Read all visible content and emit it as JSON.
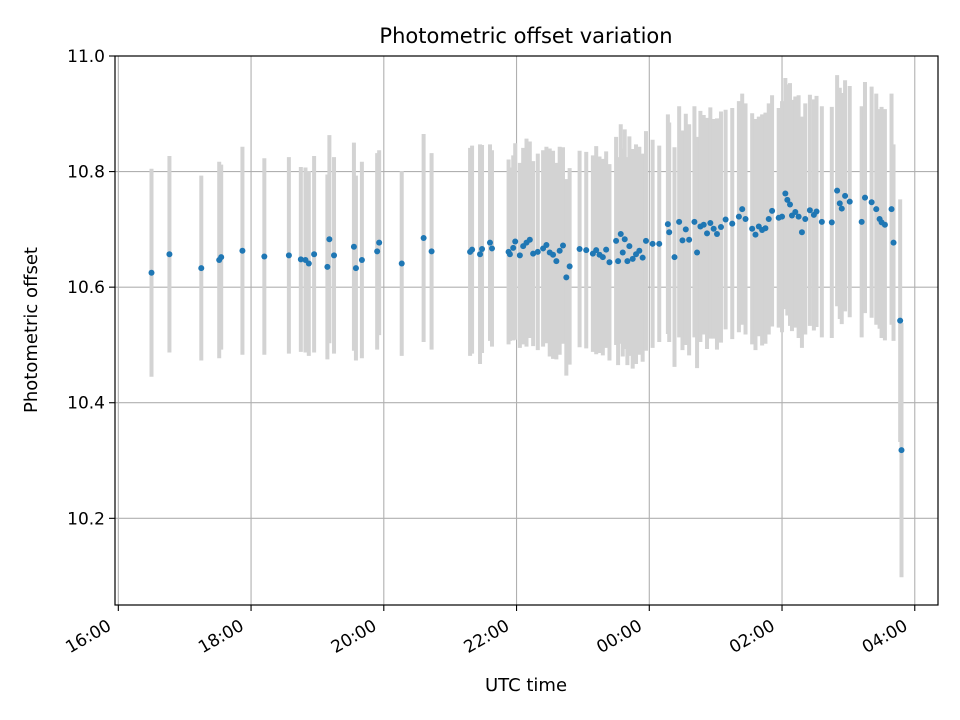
{
  "chart_data": {
    "type": "scatter",
    "title": "Photometric offset variation",
    "xlabel": "UTC time",
    "ylabel": "Photometric offset",
    "x_tick_labels": [
      "16:00",
      "18:00",
      "20:00",
      "22:00",
      "00:00",
      "02:00",
      "04:00"
    ],
    "x_tick_hours": [
      16,
      18,
      20,
      22,
      24,
      26,
      28
    ],
    "xlim_hours": [
      15.95,
      28.35
    ],
    "y_tick_labels": [
      "10.2",
      "10.4",
      "10.6",
      "10.8",
      "11.0"
    ],
    "y_ticks": [
      10.2,
      10.4,
      10.6,
      10.8,
      11.0
    ],
    "ylim": [
      10.05,
      11.0
    ],
    "grid": true,
    "marker_color": "#1f77b4",
    "errorbar_color": "#d3d3d3",
    "points": [
      [
        16.5,
        10.625,
        0.18
      ],
      [
        16.77,
        10.657,
        0.17
      ],
      [
        17.25,
        10.633,
        0.16
      ],
      [
        17.52,
        10.647,
        0.17
      ],
      [
        17.55,
        10.652,
        0.16
      ],
      [
        17.87,
        10.663,
        0.18
      ],
      [
        18.2,
        10.653,
        0.17
      ],
      [
        18.57,
        10.655,
        0.17
      ],
      [
        18.75,
        10.648,
        0.16
      ],
      [
        18.82,
        10.647,
        0.16
      ],
      [
        18.87,
        10.641,
        0.16
      ],
      [
        18.95,
        10.657,
        0.17
      ],
      [
        19.15,
        10.635,
        0.16
      ],
      [
        19.18,
        10.683,
        0.18
      ],
      [
        19.25,
        10.655,
        0.17
      ],
      [
        19.55,
        10.67,
        0.18
      ],
      [
        19.58,
        10.633,
        0.16
      ],
      [
        19.67,
        10.647,
        0.17
      ],
      [
        19.9,
        10.662,
        0.17
      ],
      [
        19.93,
        10.677,
        0.16
      ],
      [
        20.27,
        10.641,
        0.16
      ],
      [
        20.6,
        10.685,
        0.18
      ],
      [
        20.72,
        10.662,
        0.17
      ],
      [
        21.3,
        10.661,
        0.18
      ],
      [
        21.33,
        10.665,
        0.18
      ],
      [
        21.45,
        10.657,
        0.19
      ],
      [
        21.48,
        10.666,
        0.18
      ],
      [
        21.6,
        10.677,
        0.17
      ],
      [
        21.63,
        10.667,
        0.17
      ],
      [
        21.88,
        10.661,
        0.16
      ],
      [
        21.9,
        10.657,
        0.15
      ],
      [
        21.95,
        10.668,
        0.16
      ],
      [
        21.98,
        10.679,
        0.17
      ],
      [
        22.05,
        10.655,
        0.16
      ],
      [
        22.1,
        10.671,
        0.17
      ],
      [
        22.15,
        10.677,
        0.18
      ],
      [
        22.2,
        10.682,
        0.17
      ],
      [
        22.25,
        10.658,
        0.16
      ],
      [
        22.32,
        10.661,
        0.17
      ],
      [
        22.4,
        10.667,
        0.17
      ],
      [
        22.45,
        10.673,
        0.17
      ],
      [
        22.5,
        10.66,
        0.18
      ],
      [
        22.55,
        10.656,
        0.18
      ],
      [
        22.6,
        10.645,
        0.17
      ],
      [
        22.65,
        10.663,
        0.18
      ],
      [
        22.7,
        10.672,
        0.17
      ],
      [
        22.75,
        10.617,
        0.17
      ],
      [
        22.8,
        10.636,
        0.17
      ],
      [
        22.95,
        10.666,
        0.17
      ],
      [
        23.05,
        10.664,
        0.17
      ],
      [
        23.15,
        10.658,
        0.17
      ],
      [
        23.2,
        10.664,
        0.18
      ],
      [
        23.25,
        10.656,
        0.17
      ],
      [
        23.3,
        10.652,
        0.17
      ],
      [
        23.35,
        10.665,
        0.17
      ],
      [
        23.4,
        10.643,
        0.17
      ],
      [
        23.5,
        10.68,
        0.18
      ],
      [
        23.53,
        10.645,
        0.18
      ],
      [
        23.57,
        10.692,
        0.19
      ],
      [
        23.6,
        10.66,
        0.18
      ],
      [
        23.63,
        10.683,
        0.19
      ],
      [
        23.67,
        10.645,
        0.18
      ],
      [
        23.7,
        10.671,
        0.19
      ],
      [
        23.75,
        10.649,
        0.19
      ],
      [
        23.8,
        10.657,
        0.19
      ],
      [
        23.85,
        10.663,
        0.18
      ],
      [
        23.9,
        10.651,
        0.18
      ],
      [
        23.95,
        10.68,
        0.19
      ],
      [
        24.05,
        10.675,
        0.18
      ],
      [
        24.15,
        10.675,
        0.17
      ],
      [
        24.28,
        10.709,
        0.19
      ],
      [
        24.3,
        10.695,
        0.19
      ],
      [
        24.38,
        10.652,
        0.19
      ],
      [
        24.45,
        10.713,
        0.2
      ],
      [
        24.5,
        10.681,
        0.19
      ],
      [
        24.55,
        10.7,
        0.2
      ],
      [
        24.6,
        10.682,
        0.2
      ],
      [
        24.68,
        10.713,
        0.2
      ],
      [
        24.72,
        10.66,
        0.2
      ],
      [
        24.77,
        10.705,
        0.2
      ],
      [
        24.82,
        10.708,
        0.19
      ],
      [
        24.87,
        10.693,
        0.2
      ],
      [
        24.92,
        10.711,
        0.2
      ],
      [
        24.97,
        10.701,
        0.19
      ],
      [
        25.02,
        10.692,
        0.2
      ],
      [
        25.08,
        10.704,
        0.2
      ],
      [
        25.15,
        10.717,
        0.19
      ],
      [
        25.25,
        10.71,
        0.2
      ],
      [
        25.35,
        10.722,
        0.2
      ],
      [
        25.4,
        10.735,
        0.2
      ],
      [
        25.45,
        10.718,
        0.2
      ],
      [
        25.55,
        10.701,
        0.2
      ],
      [
        25.6,
        10.691,
        0.2
      ],
      [
        25.65,
        10.705,
        0.19
      ],
      [
        25.7,
        10.699,
        0.2
      ],
      [
        25.75,
        10.702,
        0.2
      ],
      [
        25.8,
        10.718,
        0.2
      ],
      [
        25.85,
        10.732,
        0.2
      ],
      [
        25.95,
        10.72,
        0.19
      ],
      [
        26.0,
        10.722,
        0.2
      ],
      [
        26.05,
        10.762,
        0.2
      ],
      [
        26.08,
        10.751,
        0.2
      ],
      [
        26.12,
        10.743,
        0.21
      ],
      [
        26.15,
        10.724,
        0.2
      ],
      [
        26.2,
        10.73,
        0.2
      ],
      [
        26.25,
        10.722,
        0.21
      ],
      [
        26.3,
        10.695,
        0.2
      ],
      [
        26.35,
        10.718,
        0.2
      ],
      [
        26.42,
        10.733,
        0.2
      ],
      [
        26.48,
        10.725,
        0.2
      ],
      [
        26.52,
        10.731,
        0.2
      ],
      [
        26.6,
        10.713,
        0.2
      ],
      [
        26.75,
        10.712,
        0.2
      ],
      [
        26.83,
        10.767,
        0.2
      ],
      [
        26.87,
        10.745,
        0.2
      ],
      [
        26.9,
        10.736,
        0.2
      ],
      [
        26.95,
        10.758,
        0.2
      ],
      [
        27.02,
        10.748,
        0.2
      ],
      [
        27.2,
        10.713,
        0.2
      ],
      [
        27.25,
        10.755,
        0.2
      ],
      [
        27.35,
        10.747,
        0.2
      ],
      [
        27.42,
        10.735,
        0.2
      ],
      [
        27.47,
        10.718,
        0.19
      ],
      [
        27.5,
        10.712,
        0.2
      ],
      [
        27.55,
        10.708,
        0.2
      ],
      [
        27.65,
        10.735,
        0.2
      ],
      [
        27.68,
        10.677,
        0.17
      ],
      [
        27.78,
        10.542,
        0.21
      ],
      [
        27.8,
        10.318,
        0.22
      ]
    ]
  }
}
